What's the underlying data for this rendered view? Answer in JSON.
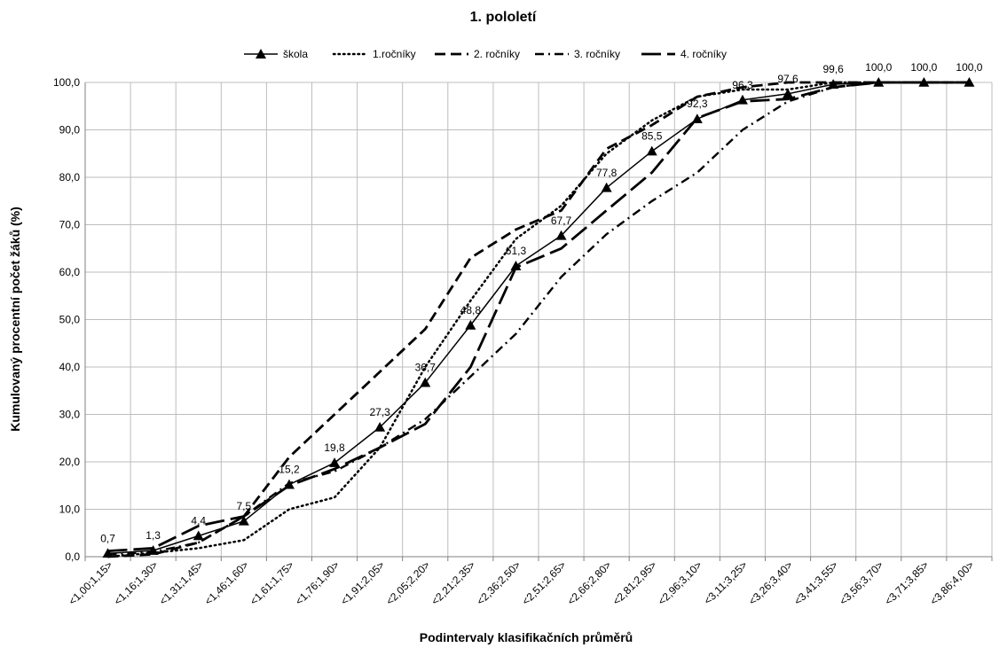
{
  "chart_data": {
    "type": "line",
    "title": "1. pololetí",
    "xlabel": "Podintervaly klasifikačních průměrů",
    "ylabel": "Kumulovaný procentní počet žáků (%)",
    "ylim": [
      0,
      100
    ],
    "ytick_step": 10,
    "grid": true,
    "legend_position": "top",
    "categories": [
      "<1,00;1,15>",
      "<1,16;1,30>",
      "<1,31;1,45>",
      "<1,46;1,60>",
      "<1,61;1,75>",
      "<1,76;1,90>",
      "<1,91;2,05>",
      "<2,05;2,20>",
      "<2,21;2,35>",
      "<2,36;2,50>",
      "<2,51;2,65>",
      "<2,66;2,80>",
      "<2,81;2,95>",
      "<2,96;3,10>",
      "<3,11;3,25>",
      "<3,26;3,40>",
      "<3,41;3,55>",
      "<3,56;3,70>",
      "<3,71;3,85>",
      "<3,86;4,00>"
    ],
    "series": [
      {
        "name": "škola",
        "style": "solid-triangle",
        "labels": true,
        "values": [
          0.7,
          1.3,
          4.4,
          7.5,
          15.2,
          19.8,
          27.3,
          36.7,
          48.8,
          61.3,
          67.7,
          77.8,
          85.5,
          92.3,
          96.3,
          97.6,
          99.6,
          100.0,
          100.0,
          100.0
        ]
      },
      {
        "name": "1.ročníky",
        "style": "dotted",
        "values": [
          0.0,
          0.8,
          1.8,
          3.5,
          10.0,
          12.5,
          23.0,
          40.0,
          54.0,
          67.0,
          74.0,
          85.0,
          92.0,
          97.0,
          98.5,
          98.5,
          100.0,
          100.0,
          100.0,
          100.0
        ]
      },
      {
        "name": "2. ročníky",
        "style": "dashed",
        "values": [
          0.0,
          0.5,
          3.0,
          8.5,
          21.0,
          30.0,
          39.0,
          48.0,
          63.0,
          69.0,
          73.0,
          86.0,
          91.0,
          97.0,
          99.0,
          100.0,
          100.0,
          100.0,
          100.0,
          100.0
        ]
      },
      {
        "name": "3. ročníky",
        "style": "dashdot",
        "values": [
          0.5,
          1.0,
          3.0,
          8.5,
          15.5,
          18.0,
          23.0,
          29.0,
          38.0,
          47.0,
          59.0,
          68.0,
          75.0,
          81.0,
          90.0,
          96.0,
          99.0,
          100.0,
          100.0,
          100.0
        ]
      },
      {
        "name": "4. ročníky",
        "style": "longdash",
        "values": [
          1.2,
          1.8,
          6.5,
          8.5,
          15.0,
          18.5,
          23.0,
          28.0,
          40.0,
          61.0,
          65.0,
          73.0,
          81.0,
          92.5,
          96.0,
          96.5,
          99.0,
          100.0,
          100.0,
          100.0
        ]
      }
    ]
  }
}
